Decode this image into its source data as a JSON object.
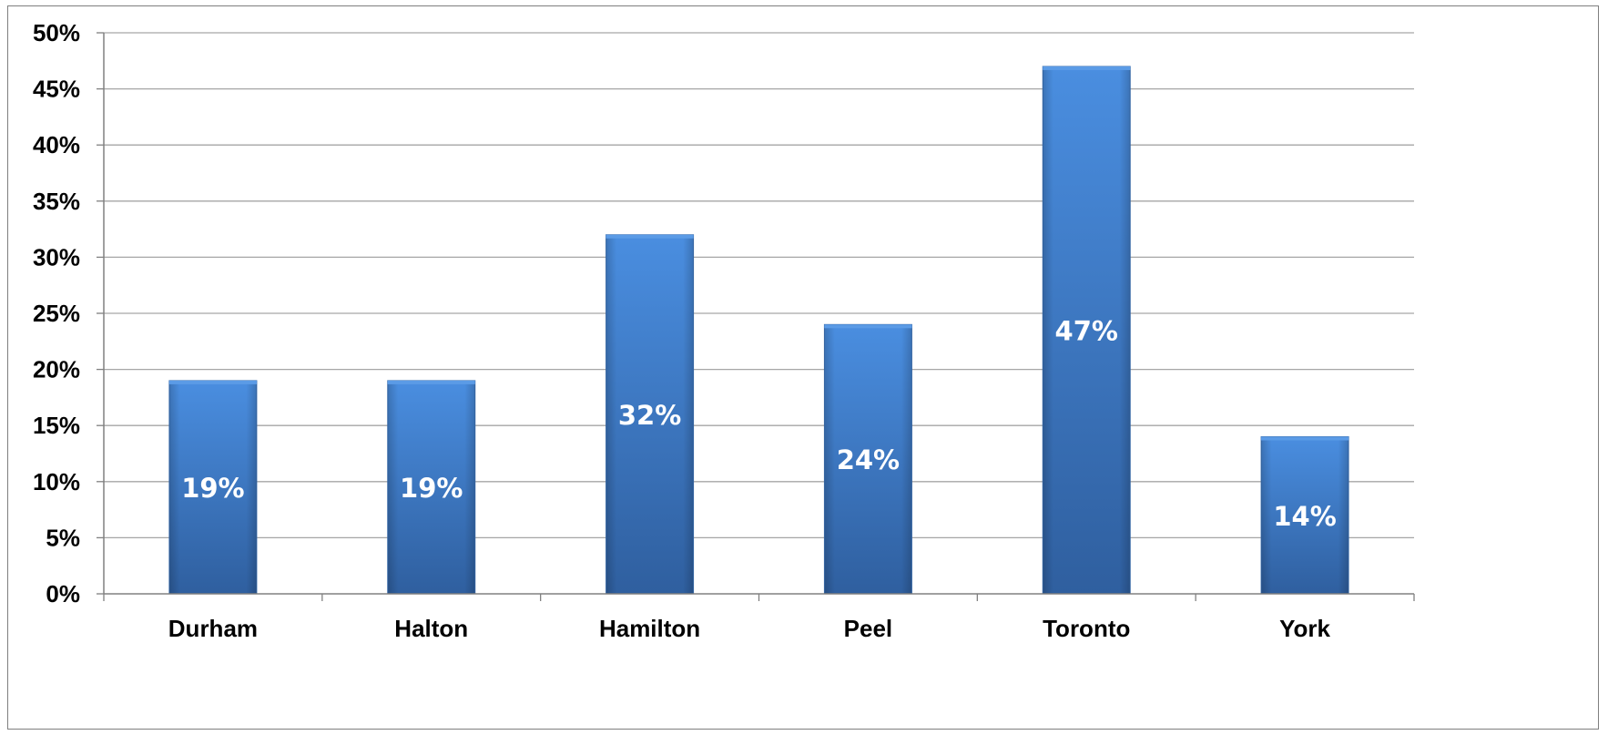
{
  "chart_data": {
    "type": "bar",
    "title": "",
    "xlabel": "",
    "ylabel": "",
    "categories": [
      "Durham",
      "Halton",
      "Hamilton",
      "Peel",
      "Toronto",
      "York"
    ],
    "values": [
      19,
      19,
      32,
      24,
      47,
      14
    ],
    "data_labels": [
      "19%",
      "19%",
      "32%",
      "24%",
      "47%",
      "14%"
    ],
    "ylim": [
      0,
      50
    ],
    "yticks": [
      0,
      5,
      10,
      15,
      20,
      25,
      30,
      35,
      40,
      45,
      50
    ],
    "ytick_labels": [
      "0%",
      "5%",
      "10%",
      "15%",
      "20%",
      "25%",
      "30%",
      "35%",
      "40%",
      "45%",
      "50%"
    ],
    "grid": true,
    "legend": "none",
    "colors": {
      "bar_top": "#4a8ee0",
      "bar_bottom": "#2f5f9f",
      "bar_edge": "#3a6eb0",
      "grid": "#a6a6a6",
      "axis": "#808080"
    }
  }
}
